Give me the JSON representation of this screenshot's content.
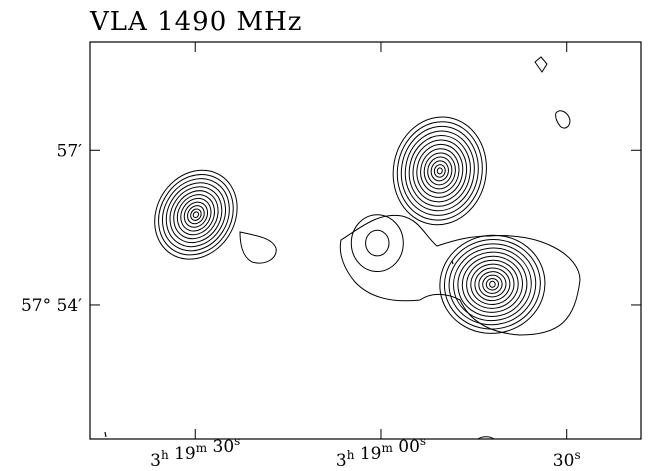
{
  "chart_data": {
    "type": "contour",
    "title": "VLA 1490 MHz",
    "xlabel": "",
    "ylabel": "",
    "x_ticks": [
      {
        "h": "3",
        "m": "19",
        "s": "30",
        "value_s": 30
      },
      {
        "h": "3",
        "m": "19",
        "s": "00",
        "value_s": 0
      },
      {
        "h": "",
        "m": "",
        "s": "30",
        "value_s": -30
      }
    ],
    "y_ticks": [
      {
        "label": "57′",
        "value_arcmin": 57
      },
      {
        "label": "57° 54′",
        "value_arcmin": 54
      }
    ],
    "xlim_s": [
      47,
      -42
    ],
    "ylim_arcmin": [
      51.4,
      59.1
    ],
    "grid": false,
    "legend": "none",
    "line_color": "#000000",
    "sources": [
      {
        "name_index": 1,
        "center": [
          29.9,
          55.75
        ],
        "peak_sigma": [
          6.3,
          0.9
        ],
        "levels": 12,
        "tilt_deg": 32
      },
      {
        "name_index": 2,
        "center": [
          -9.5,
          56.6
        ],
        "peak_sigma": [
          7.5,
          1.05
        ],
        "levels": 13,
        "tilt_deg": 10
      },
      {
        "name_index": 3,
        "center": [
          -18.0,
          54.4
        ],
        "peak_sigma": [
          8.5,
          0.95
        ],
        "levels": 13,
        "tilt_deg": -8
      },
      {
        "name_index": 4,
        "center": [
          0.6,
          55.2
        ],
        "peak_sigma": [
          4.2,
          0.55
        ],
        "levels": 2,
        "tilt_deg": 0
      }
    ]
  }
}
